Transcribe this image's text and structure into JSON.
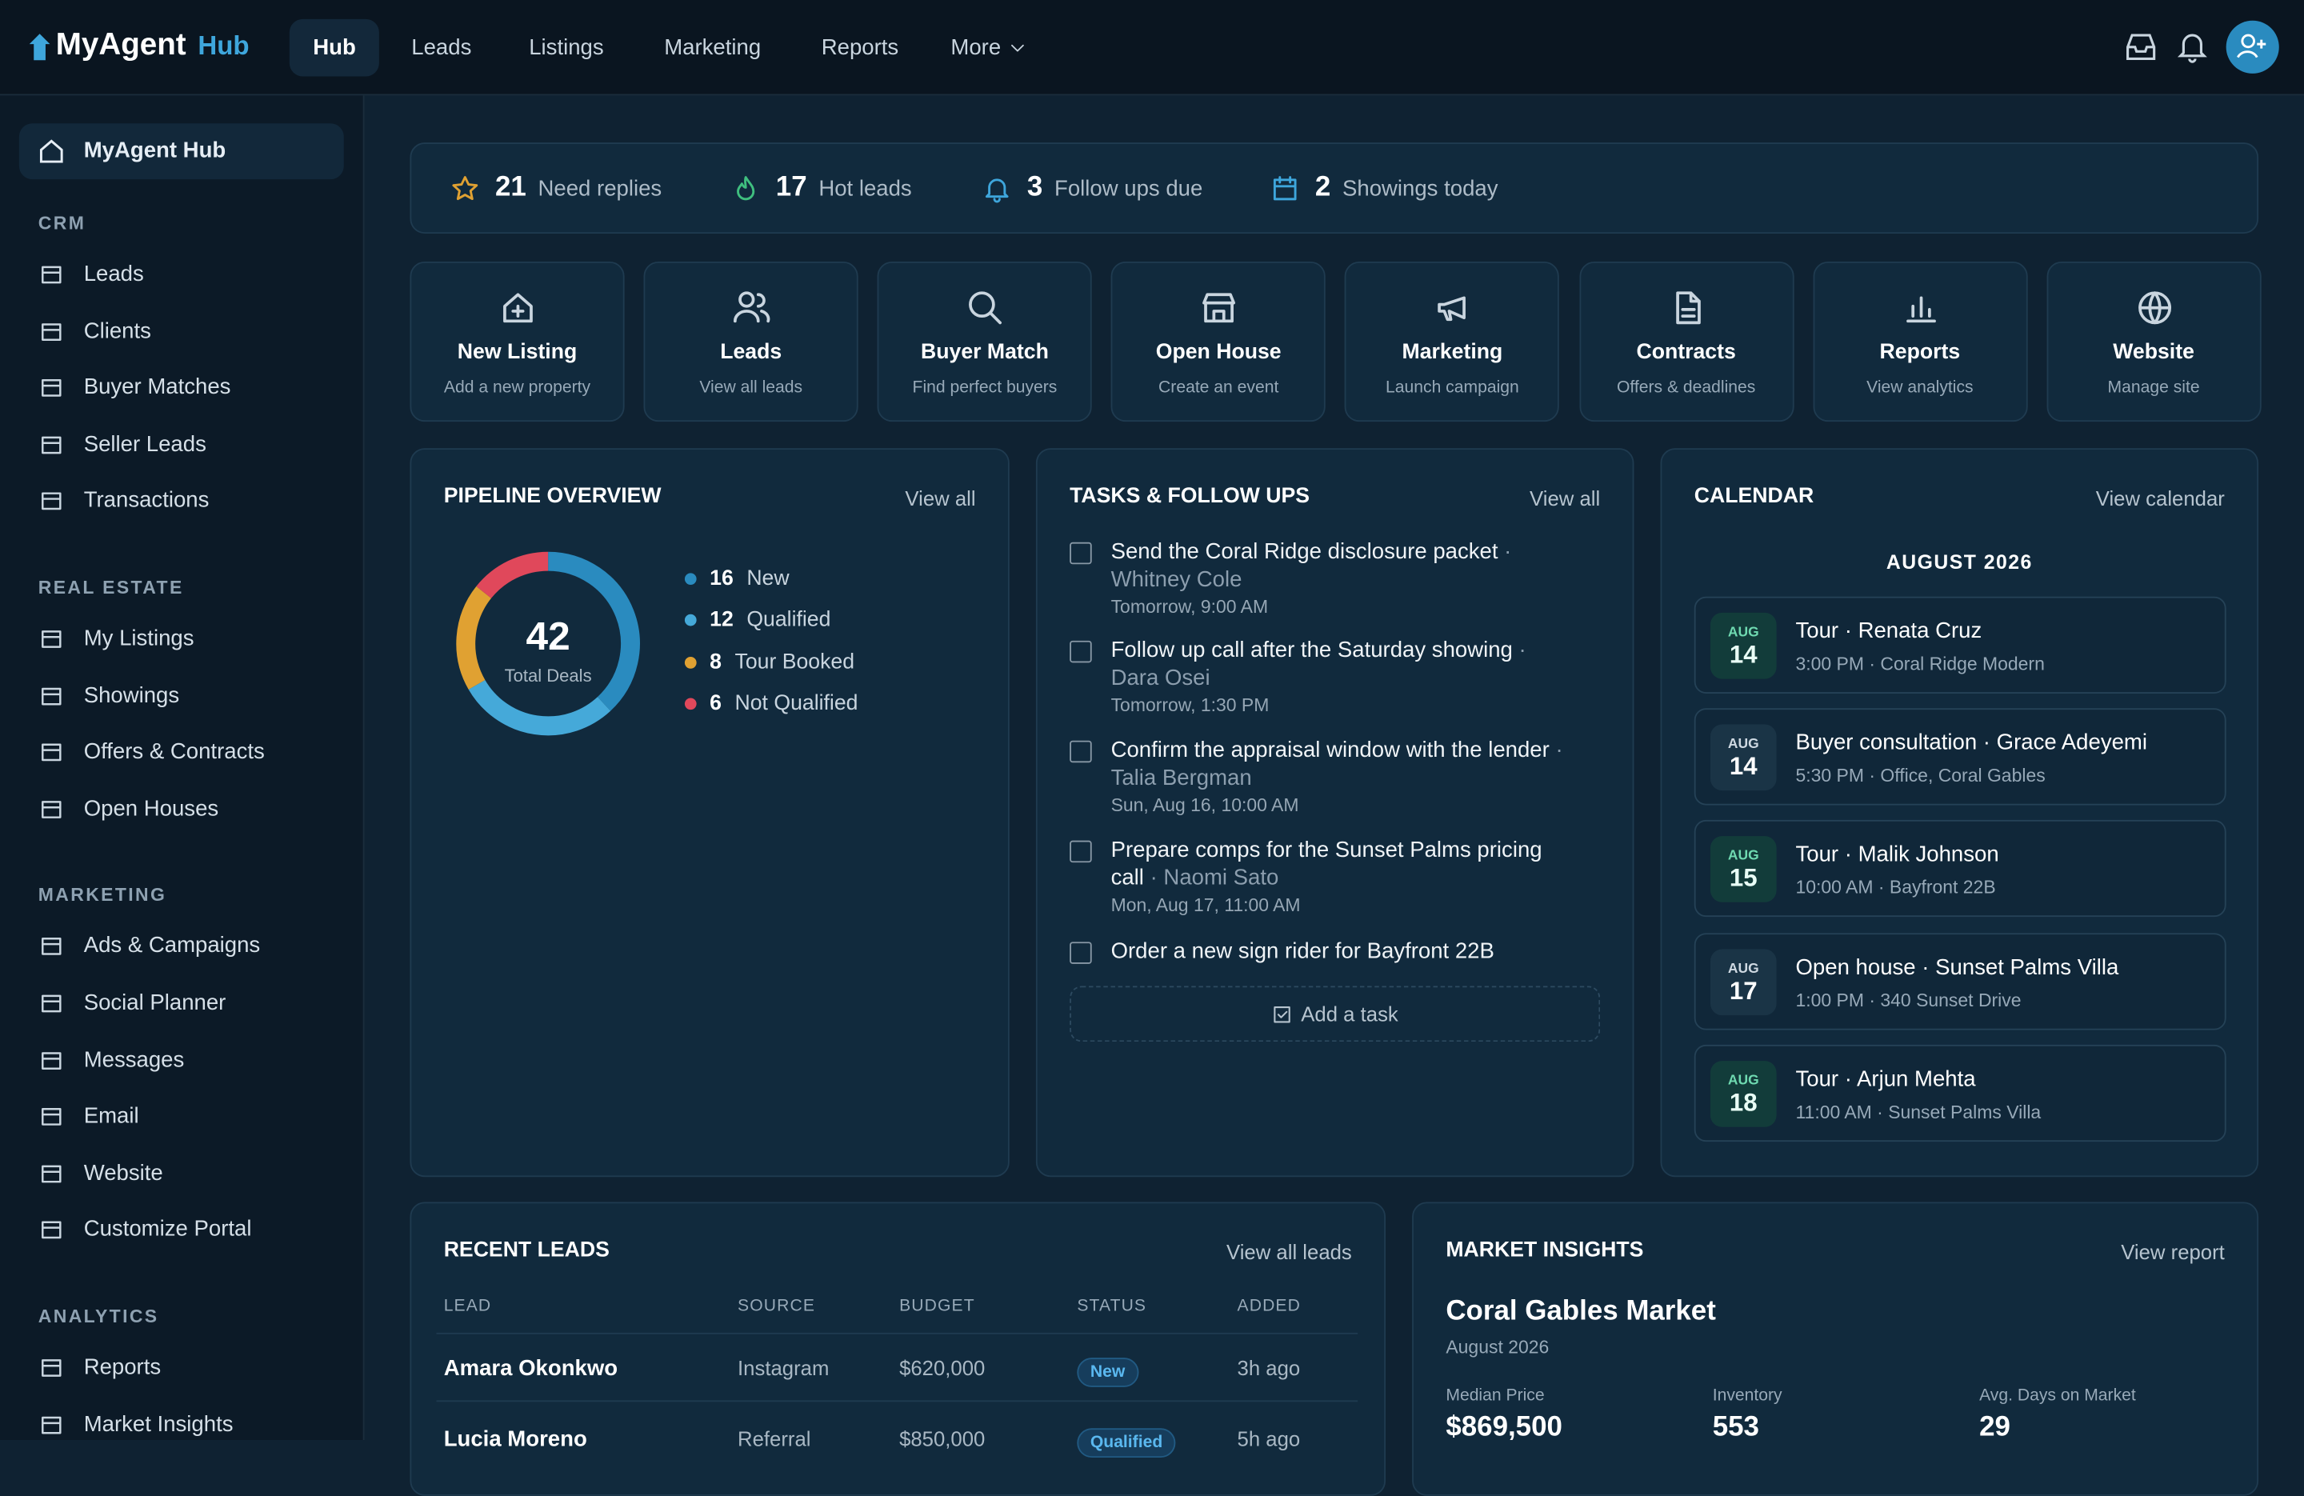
{
  "nav": {
    "brand": "MyAgent",
    "brand_suffix": "Hub",
    "tabs": [
      "Hub",
      "Leads",
      "Listings",
      "Marketing",
      "Reports",
      "More"
    ]
  },
  "sidebar": {
    "home": "MyAgent Hub",
    "sections": [
      {
        "title": "CRM",
        "items": [
          "Leads",
          "Clients",
          "Buyer Matches",
          "Seller Leads",
          "Transactions"
        ]
      },
      {
        "title": "REAL ESTATE",
        "items": [
          "My Listings",
          "Showings",
          "Offers & Contracts",
          "Open Houses"
        ]
      },
      {
        "title": "MARKETING",
        "items": [
          "Ads & Campaigns",
          "Social Planner",
          "Messages",
          "Email",
          "Website",
          "Customize Portal"
        ]
      },
      {
        "title": "ANALYTICS",
        "items": [
          "Reports",
          "Market Insights"
        ]
      }
    ]
  },
  "stats": [
    {
      "value": 21,
      "label": "Need replies"
    },
    {
      "value": 17,
      "label": "Hot leads"
    },
    {
      "value": 3,
      "label": "Follow ups due"
    },
    {
      "value": 2,
      "label": "Showings today"
    }
  ],
  "actions": [
    {
      "title": "New Listing",
      "subtitle": "Add a new property"
    },
    {
      "title": "Leads",
      "subtitle": "View all leads"
    },
    {
      "title": "Buyer Match",
      "subtitle": "Find perfect buyers"
    },
    {
      "title": "Open House",
      "subtitle": "Create an event"
    },
    {
      "title": "Marketing",
      "subtitle": "Launch campaign"
    },
    {
      "title": "Contracts",
      "subtitle": "Offers & deadlines"
    },
    {
      "title": "Reports",
      "subtitle": "View analytics"
    },
    {
      "title": "Website",
      "subtitle": "Manage site"
    }
  ],
  "pipeline": {
    "title": "PIPELINE OVERVIEW",
    "link": "View all"
  },
  "chart_data": {
    "type": "pie",
    "center_value": 42,
    "center_label": "Total Deals",
    "categories": [
      "New",
      "Qualified",
      "Tour Booked",
      "Not Qualified"
    ],
    "values": [
      16,
      12,
      8,
      6
    ],
    "colors": [
      "#2a8bbf",
      "#45a9d9",
      "#e0a132",
      "#e0485b"
    ]
  },
  "tasks": {
    "title": "TASKS & FOLLOW UPS",
    "link": "View all",
    "add": "Add a task",
    "items": [
      {
        "text": "Send the Coral Ridge disclosure packet",
        "person": "· Whitney Cole",
        "due": "Tomorrow, 9:00 AM"
      },
      {
        "text": "Follow up call after the Saturday showing",
        "person": "· Dara Osei",
        "due": "Tomorrow, 1:30 PM"
      },
      {
        "text": "Confirm the appraisal window with the lender",
        "person": "· Talia Bergman",
        "due": "Sun, Aug 16, 10:00 AM"
      },
      {
        "text": "Prepare comps for the Sunset Palms pricing call",
        "person": "· Naomi Sato",
        "due": "Mon, Aug 17, 11:00 AM"
      },
      {
        "text": "Order a new sign rider for Bayfront 22B"
      }
    ]
  },
  "calendar": {
    "title": "CALENDAR",
    "link": "View calendar",
    "month": "AUGUST 2026",
    "events": [
      {
        "month": "AUG",
        "day": 14,
        "title": "Tour · Renata Cruz",
        "detail": "3:00 PM · Coral Ridge Modern"
      },
      {
        "month": "AUG",
        "day": 14,
        "title": "Buyer consultation · Grace Adeyemi",
        "detail": "5:30 PM · Office, Coral Gables"
      },
      {
        "month": "AUG",
        "day": 15,
        "title": "Tour · Malik Johnson",
        "detail": "10:00 AM · Bayfront 22B"
      },
      {
        "month": "AUG",
        "day": 17,
        "title": "Open house · Sunset Palms Villa",
        "detail": "1:00 PM · 340 Sunset Drive"
      },
      {
        "month": "AUG",
        "day": 18,
        "title": "Tour · Arjun Mehta",
        "detail": "11:00 AM · Sunset Palms Villa"
      }
    ]
  },
  "recent_leads": {
    "title": "RECENT LEADS",
    "link": "View all leads",
    "columns": [
      "LEAD",
      "SOURCE",
      "BUDGET",
      "STATUS",
      "ADDED"
    ],
    "rows": [
      [
        "Amara Okonkwo",
        "Instagram",
        "$620,000",
        "New",
        "3h ago"
      ],
      [
        "Lucia Moreno",
        "Referral",
        "$850,000",
        "Qualified",
        "5h ago"
      ]
    ]
  },
  "market": {
    "title": "MARKET INSIGHTS",
    "link": "View report",
    "name": "Coral Gables Market",
    "date": "August 2026",
    "metrics": [
      {
        "label": "Median Price",
        "value": "$869,500"
      },
      {
        "label": "Inventory",
        "value": 553
      },
      {
        "label": "Avg. Days on Market",
        "value": 29
      }
    ]
  }
}
